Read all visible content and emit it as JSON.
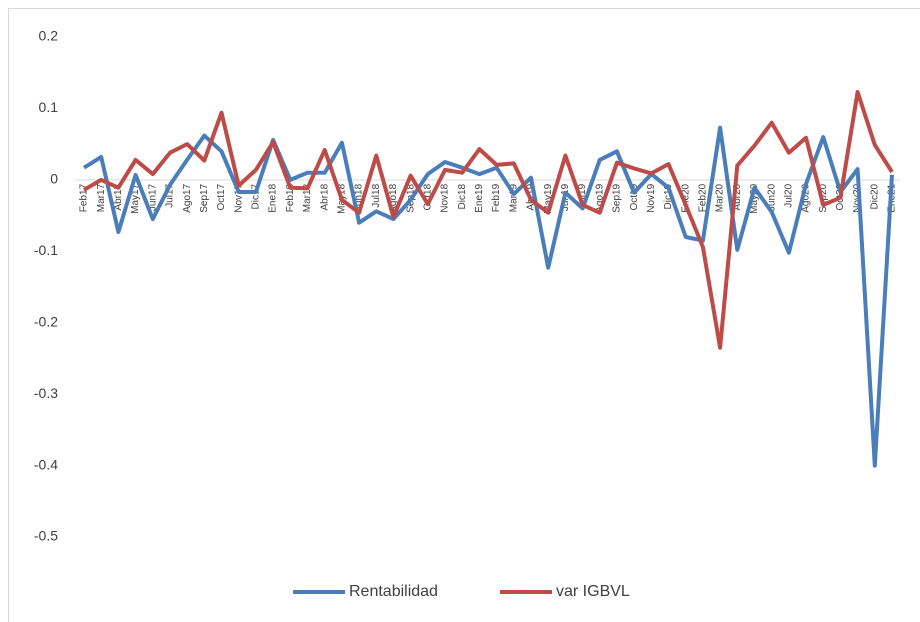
{
  "chart_data": {
    "type": "line",
    "categories": [
      "Feb17",
      "Mar17",
      "Abr17",
      "May17",
      "Jun17",
      "Jul17",
      "Ago17",
      "Sep17",
      "Oct17",
      "Nov17",
      "Dic17",
      "Ene18",
      "Feb18",
      "Mar18",
      "Abr18",
      "May18",
      "Jun18",
      "Jul18",
      "Ago18",
      "Sep18",
      "Oct18",
      "Nov18",
      "Dic18",
      "Ene19",
      "Feb19",
      "Mar19",
      "Abr19",
      "May19",
      "Jun19",
      "Jul19",
      "Ago19",
      "Sep19",
      "Oct19",
      "Nov19",
      "Dic19",
      "Ene20",
      "Feb20",
      "Mar20",
      "Abr20",
      "May20",
      "Jun20",
      "Jul20",
      "Ago20",
      "Sep20",
      "Oct20",
      "Nov20",
      "Dic20",
      "Ene21"
    ],
    "series": [
      {
        "name": "Rentabilidad",
        "color": "#4a7ebb",
        "values": [
          0.017,
          0.032,
          -0.073,
          0.007,
          -0.055,
          -0.007,
          0.028,
          0.062,
          0.04,
          -0.017,
          -0.017,
          0.056,
          0.0,
          0.01,
          0.01,
          0.052,
          -0.06,
          -0.044,
          -0.055,
          -0.028,
          0.008,
          0.025,
          0.017,
          0.008,
          0.017,
          -0.02,
          0.003,
          -0.123,
          -0.018,
          -0.04,
          0.028,
          0.04,
          -0.018,
          0.008,
          -0.011,
          -0.08,
          -0.085,
          0.073,
          -0.098,
          -0.011,
          -0.045,
          -0.102,
          -0.006,
          0.06,
          -0.017,
          0.015,
          -0.4,
          0.007
        ]
      },
      {
        "name": "var IGBVL",
        "color": "#be4b48",
        "values": [
          -0.014,
          0.0,
          -0.011,
          0.028,
          0.008,
          0.038,
          0.05,
          0.027,
          0.094,
          -0.008,
          0.014,
          0.053,
          -0.011,
          -0.012,
          0.042,
          -0.028,
          -0.046,
          0.034,
          -0.052,
          0.006,
          -0.034,
          0.014,
          0.01,
          0.043,
          0.021,
          0.023,
          -0.028,
          -0.046,
          0.034,
          -0.035,
          -0.046,
          0.024,
          0.016,
          0.009,
          0.022,
          -0.035,
          -0.094,
          -0.235,
          0.02,
          0.048,
          0.08,
          0.038,
          0.059,
          -0.035,
          -0.025,
          0.123,
          0.049,
          0.011
        ]
      }
    ],
    "ylim": [
      -0.5,
      0.2
    ],
    "yticks": [
      0.2,
      0.1,
      0,
      -0.1,
      -0.2,
      -0.3,
      -0.4,
      -0.5
    ],
    "grid": false,
    "legend": "bottom"
  }
}
